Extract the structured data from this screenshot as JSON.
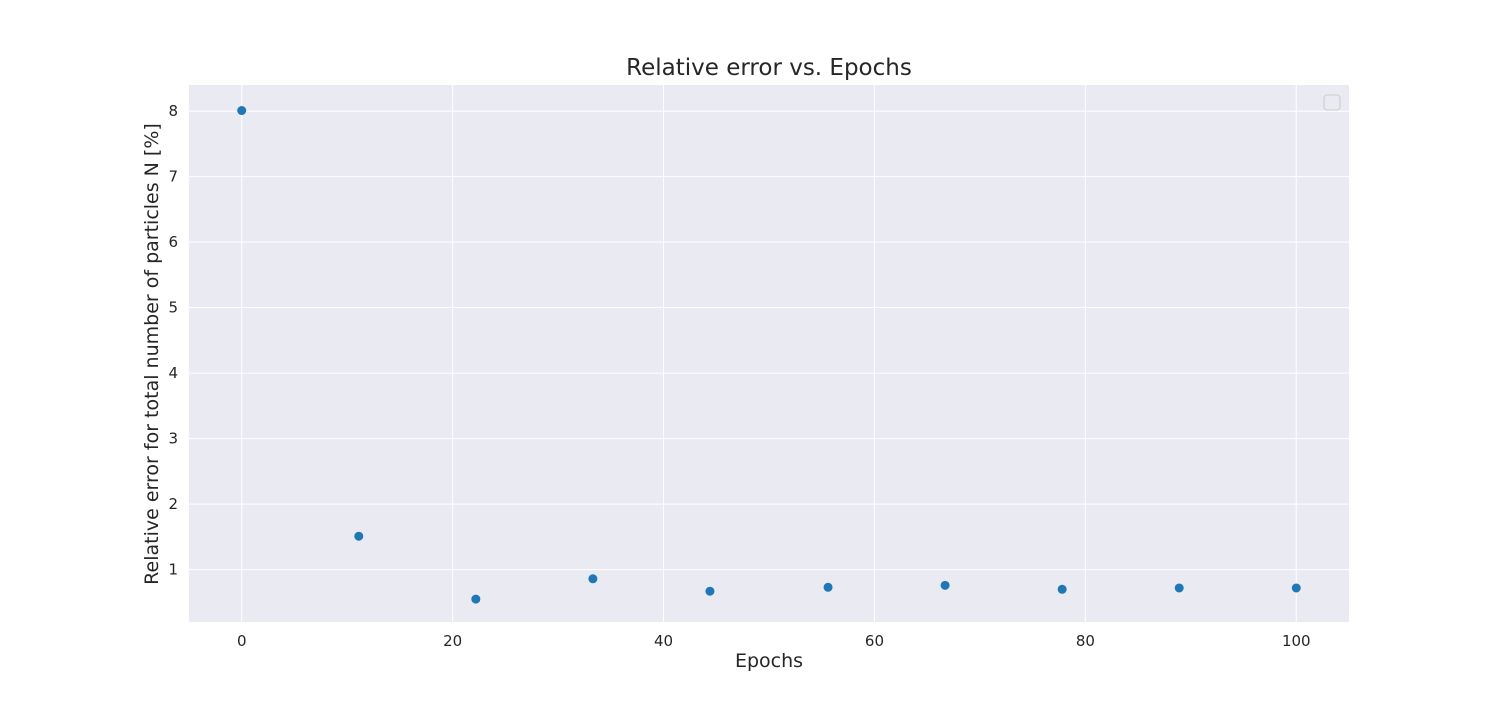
{
  "chart_data": {
    "type": "scatter",
    "title": "Relative error vs. Epochs",
    "xlabel": "Epochs",
    "ylabel": "Relative error for total number of particles N [%]",
    "xlim": [
      -5,
      105
    ],
    "ylim": [
      0.2,
      8.4
    ],
    "xticks": [
      0,
      20,
      40,
      60,
      80,
      100
    ],
    "yticks": [
      1,
      2,
      3,
      4,
      5,
      6,
      7,
      8
    ],
    "grid": true,
    "legend": {
      "placement": "top-right",
      "entries": []
    },
    "colors": {
      "background": "#eaeaf2",
      "grid": "#ffffff",
      "marker": "#1f77b4"
    },
    "series": [
      {
        "x": [
          0,
          11.1,
          22.2,
          33.3,
          44.4,
          55.6,
          66.7,
          77.8,
          88.9,
          100
        ],
        "y": [
          8.01,
          1.51,
          0.55,
          0.86,
          0.67,
          0.73,
          0.76,
          0.7,
          0.72,
          0.72
        ]
      }
    ]
  }
}
